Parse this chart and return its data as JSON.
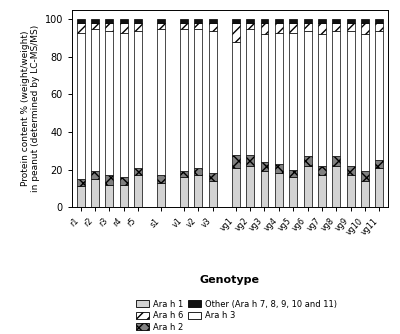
{
  "genotypes": [
    "r1",
    "r2",
    "r3",
    "r4",
    "r5",
    "s1",
    "v1",
    "v2",
    "v3",
    "vg1",
    "vg2",
    "vg3",
    "vg4",
    "vg5",
    "vg6",
    "vg7",
    "vg8",
    "vg9",
    "vg10",
    "vg11"
  ],
  "groups": [
    "r",
    "r",
    "r",
    "r",
    "r",
    "s",
    "v",
    "v",
    "v",
    "vg",
    "vg",
    "vg",
    "vg",
    "vg",
    "vg",
    "vg",
    "vg",
    "vg",
    "vg",
    "vg"
  ],
  "ara_h1": [
    11,
    15,
    12,
    12,
    17,
    13,
    16,
    17,
    14,
    21,
    22,
    19,
    18,
    16,
    22,
    17,
    22,
    17,
    14,
    21
  ],
  "ara_h2": [
    4,
    4,
    5,
    4,
    4,
    4,
    3,
    4,
    4,
    7,
    6,
    5,
    5,
    4,
    5,
    5,
    5,
    5,
    5,
    4
  ],
  "ara_h3": [
    78,
    76,
    77,
    77,
    73,
    78,
    76,
    74,
    76,
    60,
    67,
    68,
    70,
    73,
    67,
    70,
    67,
    72,
    73,
    69
  ],
  "ara_h6": [
    5,
    3,
    4,
    5,
    4,
    3,
    3,
    3,
    4,
    10,
    3,
    6,
    5,
    5,
    4,
    6,
    4,
    4,
    6,
    4
  ],
  "other": [
    2,
    2,
    2,
    2,
    2,
    2,
    2,
    2,
    2,
    2,
    2,
    2,
    2,
    2,
    2,
    2,
    2,
    2,
    2,
    2
  ],
  "ylabel": "Protein content % (weight/weight)\nin peanut (determined by LC-MS/MS)",
  "xlabel": "Genotype",
  "ylim": [
    0,
    105
  ],
  "yticks": [
    0,
    20,
    40,
    60,
    80,
    100
  ],
  "color_h1": "#d3d3d3",
  "color_h2": "#808080",
  "color_h3": "#ffffff",
  "color_other": "#111111",
  "bg_color": "#ffffff",
  "bar_width": 0.55
}
